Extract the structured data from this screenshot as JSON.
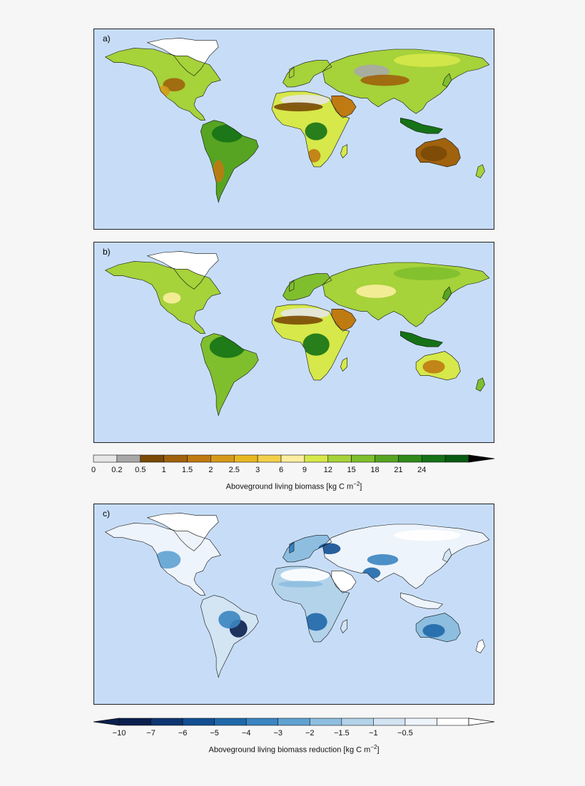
{
  "panels": [
    {
      "label": "a)",
      "scenario": "full"
    },
    {
      "label": "b)",
      "scenario": "potential"
    },
    {
      "label": "c)",
      "scenario": "reduction"
    }
  ],
  "colorbar_biomass": {
    "title": "Aboveground living biomass [kg C m",
    "title_sup": "−2",
    "title_end": "]",
    "ticks": [
      "0",
      "0.2",
      "0.5",
      "1",
      "1.5",
      "2",
      "2.5",
      "3",
      "6",
      "9",
      "12",
      "15",
      "18",
      "21",
      "24"
    ],
    "colors": [
      "#e6e6e6",
      "#a8a8a8",
      "#7a4a06",
      "#a0620c",
      "#c07a12",
      "#d69a1a",
      "#e8b822",
      "#f3d04a",
      "#fbeea0",
      "#d6e84a",
      "#a6d23a",
      "#7fbf2e",
      "#56a422",
      "#2f8a1a",
      "#157216",
      "#075a12"
    ],
    "extend": "right"
  },
  "colorbar_reduction": {
    "title": "Aboveground living biomass reduction [kg C m",
    "title_sup": "−2",
    "title_end": "]",
    "ticks": [
      "−10",
      "−7",
      "−6",
      "−5",
      "−4",
      "−3",
      "−2",
      "−1.5",
      "−1",
      "−0.5"
    ],
    "colors": [
      "#0a1f4e",
      "#0e3570",
      "#114f92",
      "#1f68aa",
      "#3a85c1",
      "#5fa2d2",
      "#8dbee0",
      "#b3d3ea",
      "#d3e4f3",
      "#eef4fb",
      "#ffffff"
    ],
    "extend": "both"
  },
  "colors": {
    "ocean": "#c7ddf7",
    "coast": "#111111"
  }
}
